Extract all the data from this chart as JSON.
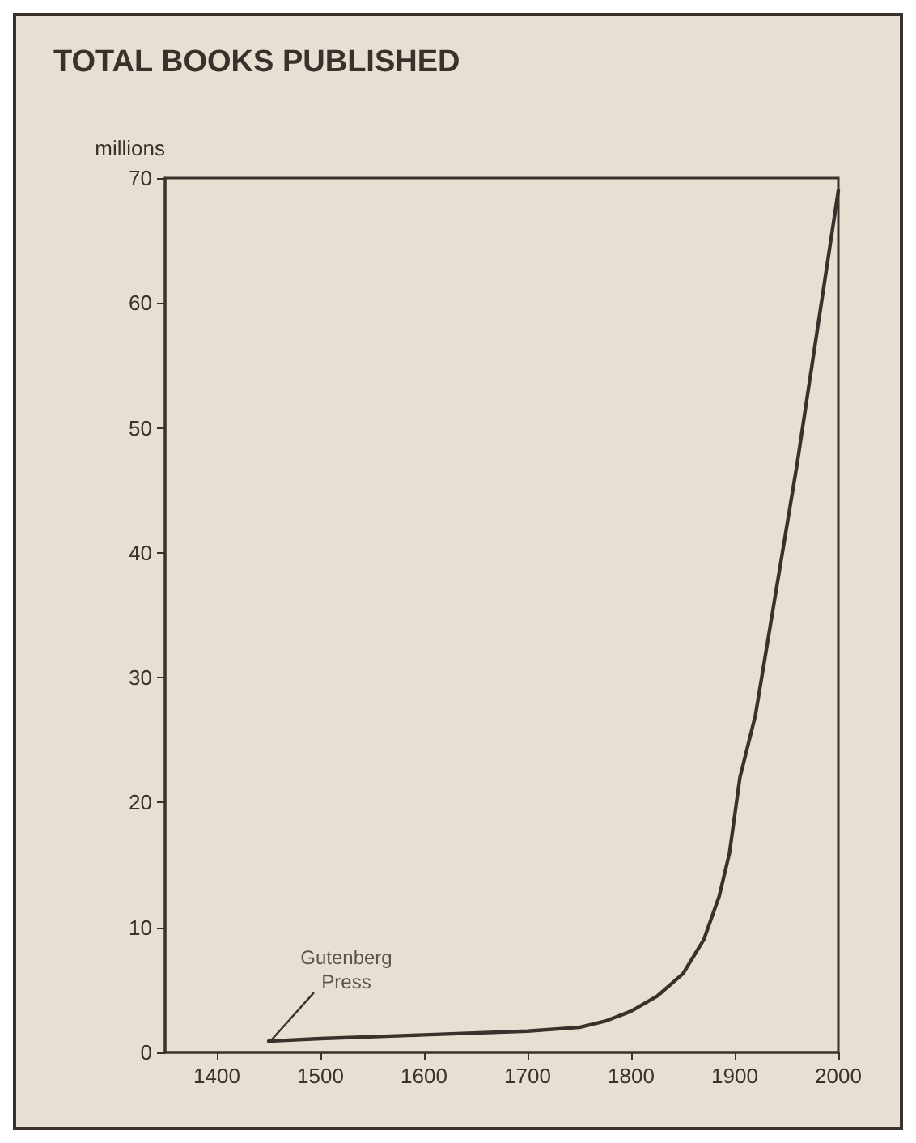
{
  "chart_data": {
    "type": "line",
    "title": "TOTAL BOOKS PUBLISHED",
    "ylabel": "millions",
    "x": [
      1450,
      1500,
      1600,
      1700,
      1750,
      1775,
      1800,
      1825,
      1850,
      1870,
      1885,
      1895,
      1905,
      1920,
      1940,
      1960,
      1980,
      2000
    ],
    "series": [
      {
        "color": "#3a302c",
        "values": [
          0.9,
          1.1,
          1.4,
          1.7,
          2.0,
          2.5,
          3.3,
          4.5,
          6.3,
          9,
          12.5,
          16,
          22,
          27,
          37,
          47,
          58,
          69
        ]
      }
    ],
    "xlim": [
      1350,
      2000
    ],
    "xticks": [
      1400,
      1500,
      1600,
      1700,
      1800,
      1900,
      2000
    ],
    "ylim": [
      0,
      70
    ],
    "yticks": [
      0,
      10,
      20,
      30,
      40,
      50,
      60,
      70
    ],
    "grid": false,
    "marker": "none",
    "line_style": "solid",
    "annotations": [
      {
        "text": "Gutenberg\nPress",
        "x": 1450,
        "y": 0.9
      }
    ]
  }
}
